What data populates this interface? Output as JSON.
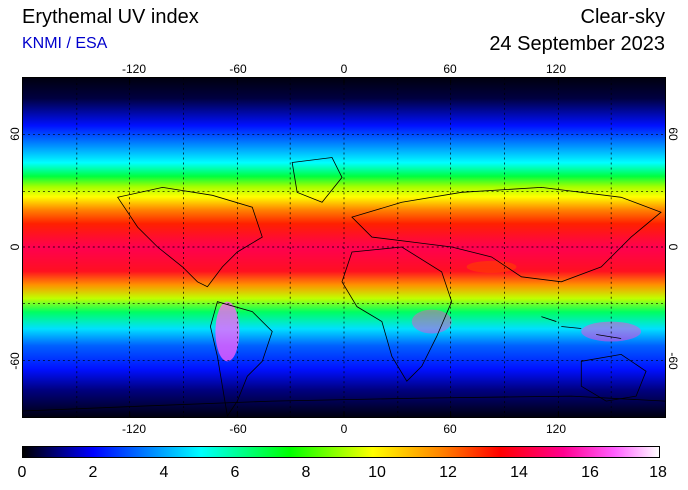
{
  "header": {
    "title": "Erythemal UV index",
    "credit": "KNMI / ESA",
    "condition": "Clear-sky",
    "date": "24 September 2023"
  },
  "map": {
    "lon_ticks": [
      "-120",
      "-60",
      "0",
      "60",
      "120"
    ],
    "lat_ticks": [
      "60",
      "0",
      "-60"
    ],
    "lon_range": [
      -180,
      180
    ],
    "lat_range": [
      -90,
      90
    ]
  },
  "colorbar": {
    "labels": [
      "0",
      "2",
      "4",
      "6",
      "8",
      "10",
      "12",
      "14",
      "16",
      "18"
    ],
    "min": 0,
    "max": 18,
    "colors": [
      "#000000",
      "#0000ff",
      "#00ffff",
      "#00ff00",
      "#ffff00",
      "#ff8800",
      "#ff0000",
      "#ff00aa",
      "#ffffff"
    ]
  }
}
